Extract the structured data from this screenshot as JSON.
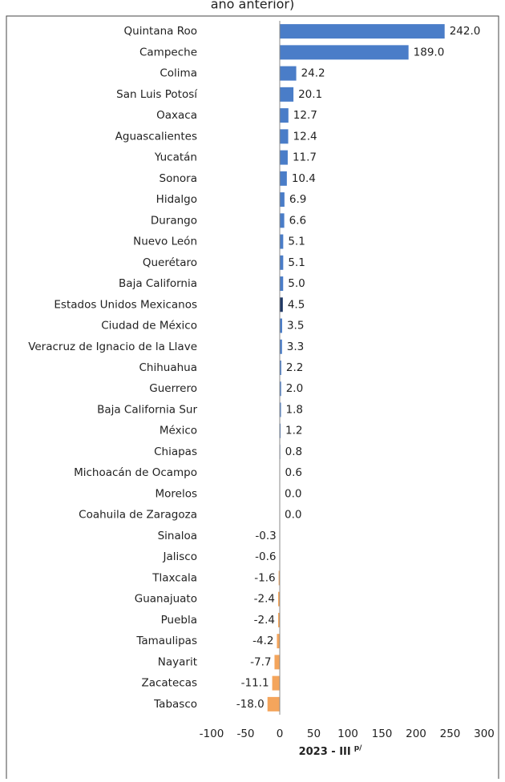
{
  "chart_data": {
    "type": "bar",
    "orientation": "horizontal",
    "title": "año anterior)",
    "xlabel": "2023 - III",
    "xlabel_sup": "p/",
    "categories": [
      "Quintana Roo",
      "Campeche",
      "Colima",
      "San Luis Potosí",
      "Oaxaca",
      "Aguascalientes",
      "Yucatán",
      "Sonora",
      "Hidalgo",
      "Durango",
      "Nuevo León",
      "Querétaro",
      "Baja California",
      "Estados Unidos Mexicanos",
      "Ciudad de México",
      "Veracruz de Ignacio de la Llave",
      "Chihuahua",
      "Guerrero",
      "Baja California Sur",
      "México",
      "Chiapas",
      "Michoacán de Ocampo",
      "Morelos",
      "Coahuila de Zaragoza",
      "Sinaloa",
      "Jalisco",
      "Tlaxcala",
      "Guanajuato",
      "Puebla",
      "Tamaulipas",
      "Nayarit",
      "Zacatecas",
      "Tabasco"
    ],
    "values": [
      242.0,
      189.0,
      24.2,
      20.1,
      12.7,
      12.4,
      11.7,
      10.4,
      6.9,
      6.6,
      5.1,
      5.1,
      5.0,
      4.5,
      3.5,
      3.3,
      2.2,
      2.0,
      1.8,
      1.2,
      0.8,
      0.6,
      0.0,
      0.0,
      -0.3,
      -0.6,
      -1.6,
      -2.4,
      -2.4,
      -4.2,
      -7.7,
      -11.1,
      -18.0
    ],
    "value_labels": [
      "242.0",
      "189.0",
      "24.2",
      "20.1",
      "12.7",
      "12.4",
      "11.7",
      "10.4",
      "6.9",
      "6.6",
      "5.1",
      "5.1",
      "5.0",
      "4.5",
      "3.5",
      "3.3",
      "2.2",
      "2.0",
      "1.8",
      "1.2",
      "0.8",
      "0.6",
      "0.0",
      "0.0",
      "-0.3",
      "-0.6",
      "-1.6",
      "-2.4",
      "-2.4",
      "-4.2",
      "-7.7",
      "-11.1",
      "-18.0"
    ],
    "color": "#4a7dc8",
    "negative_color": "#f4a55c",
    "highlight_index": 13,
    "highlight_color": "#1f3864",
    "xlim": [
      -100,
      300
    ],
    "xticks": [
      -100,
      -50,
      0,
      50,
      100,
      150,
      200,
      250,
      300
    ]
  }
}
